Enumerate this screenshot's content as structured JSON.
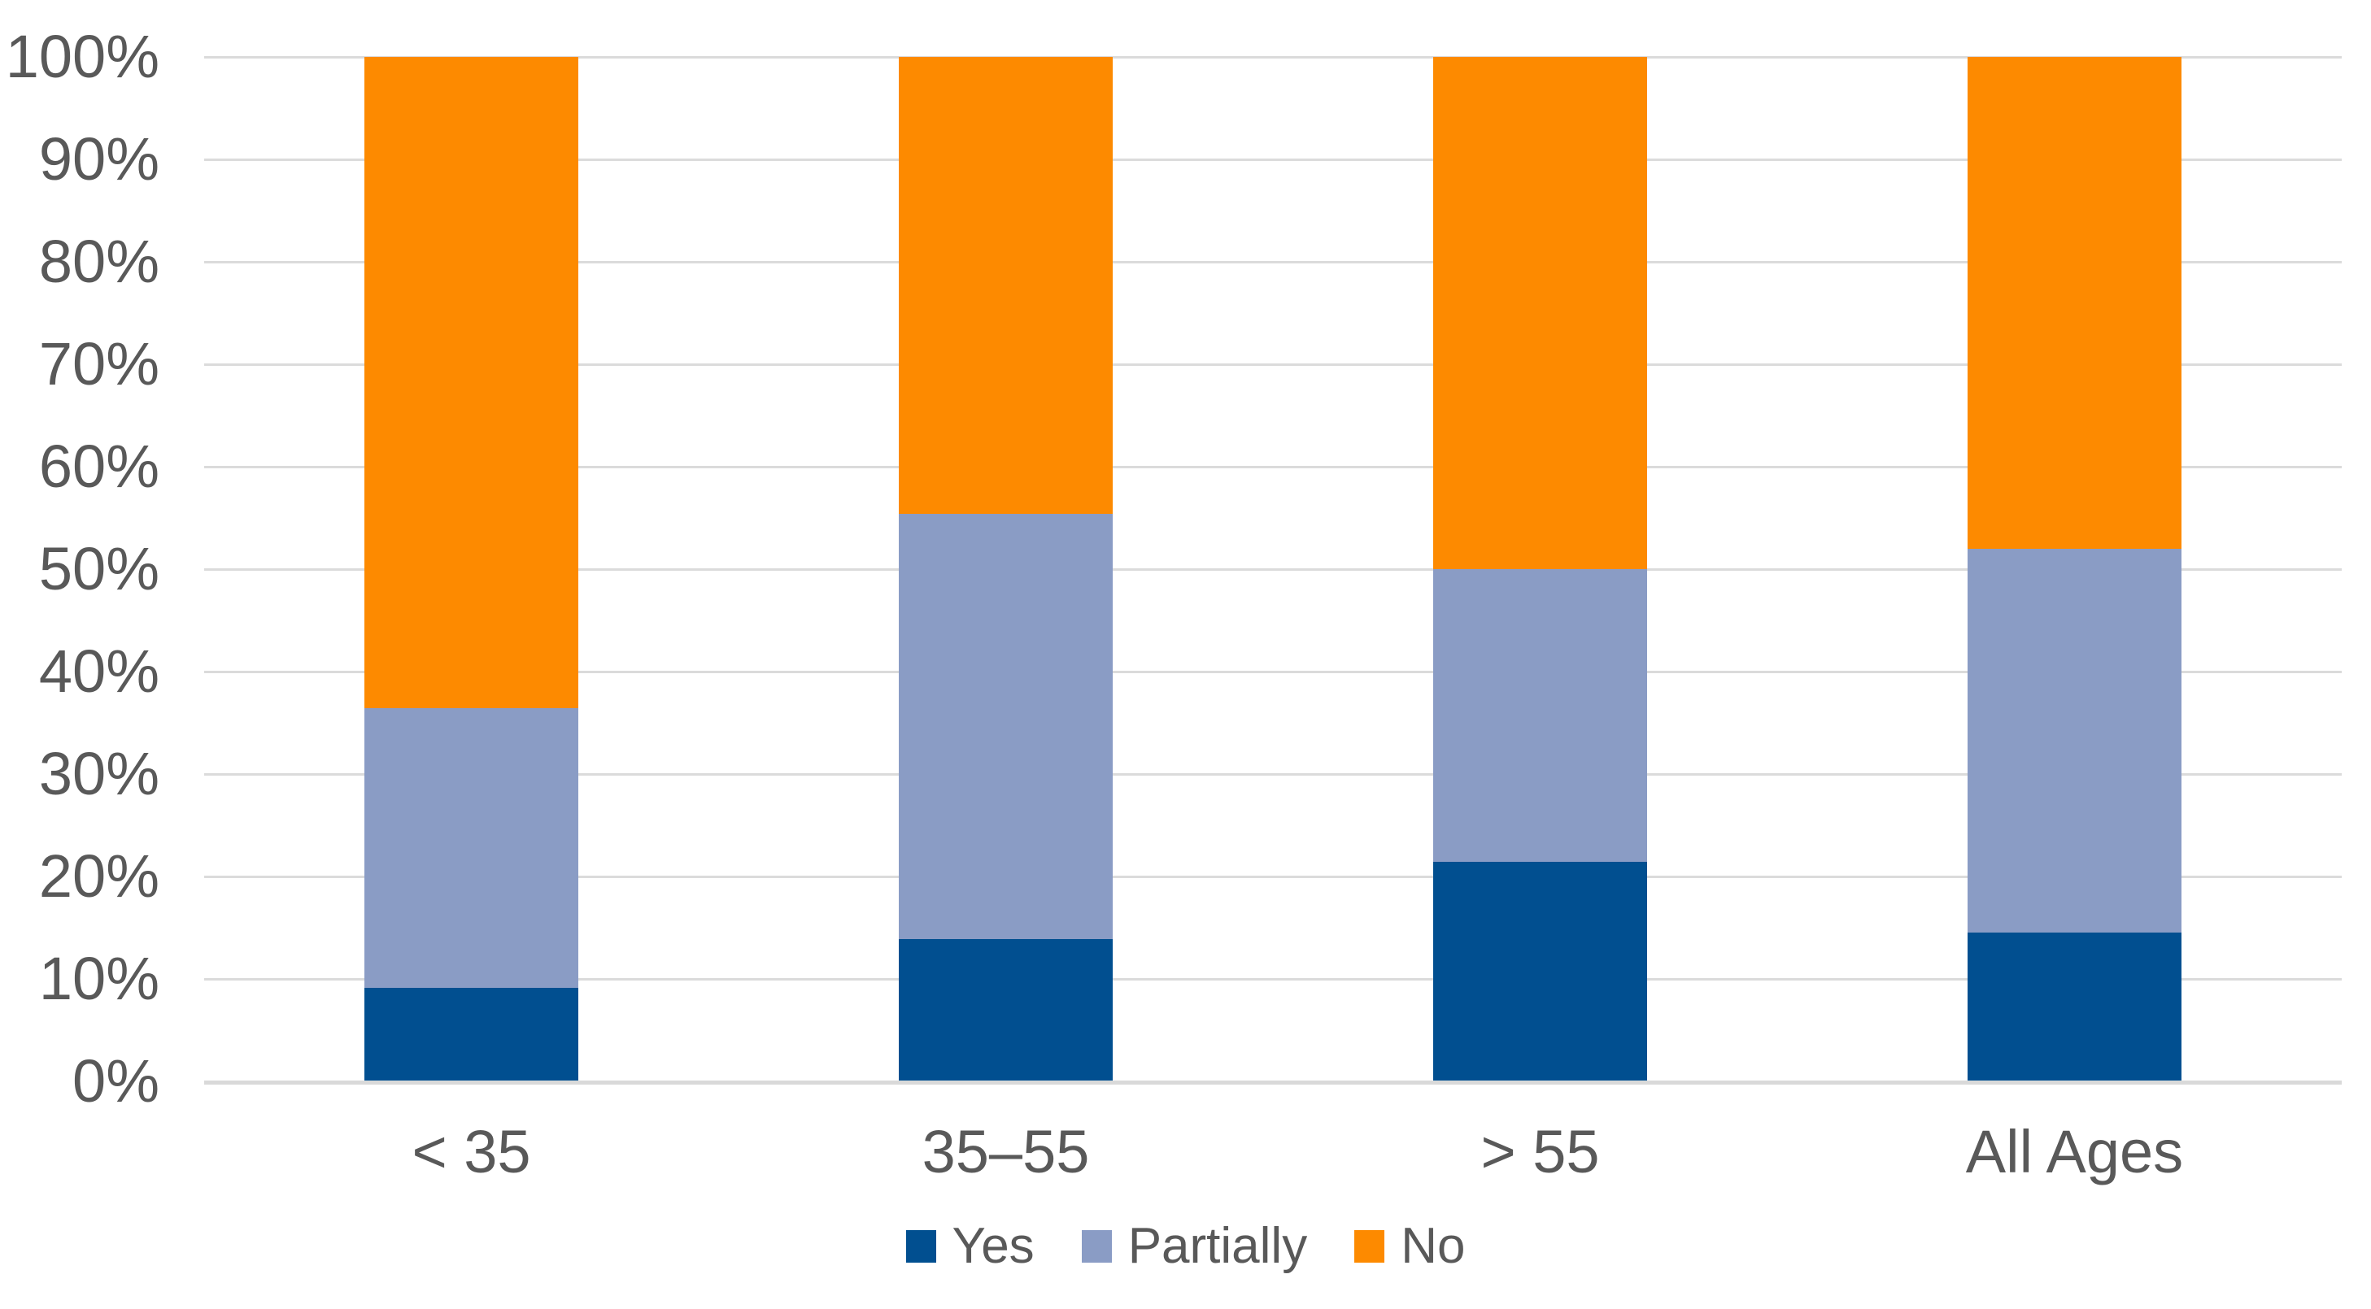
{
  "chart_data": {
    "type": "bar",
    "subtype": "stacked-percentage-column",
    "categories": [
      "< 35",
      "35–55",
      "> 55",
      "All Ages"
    ],
    "series": [
      {
        "name": "Yes",
        "color": "#014F90",
        "values": [
          9.1,
          13.9,
          21.4,
          14.5
        ]
      },
      {
        "name": "Partially",
        "color": "#8A9CC5",
        "values": [
          27.3,
          41.5,
          28.6,
          37.5
        ]
      },
      {
        "name": "No",
        "color": "#FD8A00",
        "values": [
          63.6,
          44.6,
          50.0,
          48.0
        ]
      }
    ],
    "title": "",
    "xlabel": "",
    "ylabel": "",
    "y_axis": {
      "min": 0,
      "max": 100,
      "step": 10,
      "tick_labels": [
        "0%",
        "10%",
        "20%",
        "30%",
        "40%",
        "50%",
        "60%",
        "70%",
        "80%",
        "90%",
        "100%"
      ]
    },
    "grid": true,
    "legend": {
      "position": "bottom-center",
      "entries": [
        "Yes",
        "Partially",
        "No"
      ]
    }
  },
  "styles": {
    "background": "#FFFFFF",
    "gridline_color": "#DBDBDB",
    "axis_line_color": "#D9D9D9",
    "label_color": "#595959"
  }
}
